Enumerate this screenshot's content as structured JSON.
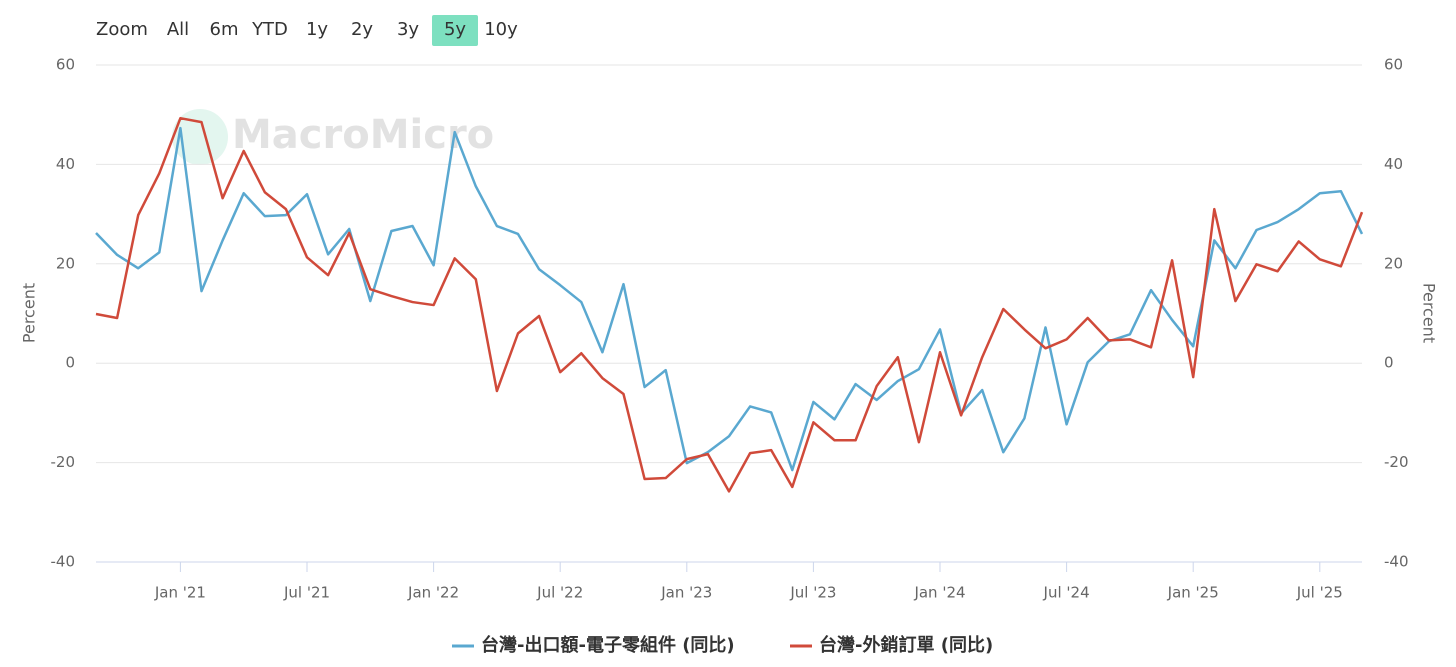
{
  "chart_data": {
    "type": "line",
    "range_selector": {
      "label": "Zoom",
      "buttons": [
        "All",
        "6m",
        "YTD",
        "1y",
        "2y",
        "3y",
        "5y",
        "10y"
      ],
      "selected": "5y"
    },
    "watermark": "MacroMicro",
    "ylabel": "Percent",
    "y2label": "Percent",
    "categories": [
      null,
      null,
      null,
      null,
      "Jan '21",
      null,
      null,
      null,
      null,
      null,
      "Jul '21",
      null,
      null,
      null,
      null,
      null,
      "Jan '22",
      null,
      null,
      null,
      null,
      null,
      "Jul '22",
      null,
      null,
      null,
      null,
      null,
      "Jan '23",
      null,
      null,
      null,
      null,
      null,
      "Jul '23",
      null,
      null,
      null,
      null,
      null,
      "Jan '24",
      null,
      null,
      null,
      null,
      null,
      "Jul '24",
      null,
      null,
      null,
      null,
      null,
      "Jan '25",
      null,
      null,
      null,
      null,
      null,
      "Jul '25",
      null,
      null
    ],
    "series": [
      {
        "name": "台灣-出口額-電子零組件 (同比)",
        "color": "#5aa8d0",
        "values": [
          26.2,
          21.8,
          19.1,
          22.3,
          47.3,
          14.5,
          24.7,
          34.2,
          29.6,
          29.8,
          34.0,
          21.9,
          27.0,
          12.5,
          26.6,
          27.6,
          19.7,
          46.5,
          35.6,
          27.6,
          26.0,
          18.9,
          15.7,
          12.3,
          2.2,
          15.9,
          -4.8,
          -1.4,
          -20.1,
          -17.9,
          -14.7,
          -8.7,
          -9.9,
          -21.5,
          -7.8,
          -11.3,
          -4.2,
          -7.4,
          -3.6,
          -1.2,
          6.8,
          -10.1,
          -5.4,
          -17.9,
          -11.1,
          7.2,
          -12.3,
          0.2,
          4.4,
          5.8,
          14.7,
          8.7,
          3.4,
          24.7,
          19.1,
          26.8,
          28.4,
          31.0,
          34.2,
          34.6,
          26.0
        ]
      },
      {
        "name": "台灣-外銷訂單 (同比)",
        "color": "#d04a3a",
        "values": [
          9.9,
          9.1,
          29.8,
          38.2,
          49.3,
          48.5,
          33.2,
          42.7,
          34.4,
          31.0,
          21.3,
          17.7,
          26.2,
          14.9,
          13.5,
          12.3,
          11.7,
          21.1,
          16.9,
          -5.6,
          6.0,
          9.5,
          -1.8,
          2.0,
          -3.0,
          -6.2,
          -23.3,
          -23.1,
          -19.3,
          -18.3,
          -25.8,
          -18.1,
          -17.5,
          -24.9,
          -11.9,
          -15.5,
          -15.5,
          -4.6,
          1.2,
          -15.9,
          2.2,
          -10.5,
          1.2,
          10.9,
          6.8,
          3.0,
          4.8,
          9.1,
          4.6,
          4.8,
          3.2,
          20.7,
          -2.8,
          31.0,
          12.5,
          19.9,
          18.5,
          24.5,
          20.9,
          19.5,
          30.4
        ]
      }
    ],
    "ylim": [
      -40,
      60
    ],
    "yticks": [
      -40,
      -20,
      0,
      20,
      40,
      60
    ],
    "y2lim": [
      -40,
      60
    ],
    "y2ticks": [
      -40,
      -20,
      0,
      20,
      40,
      60
    ],
    "grid": true,
    "legend": "bottom",
    "selected_color": "#7de0c0"
  }
}
